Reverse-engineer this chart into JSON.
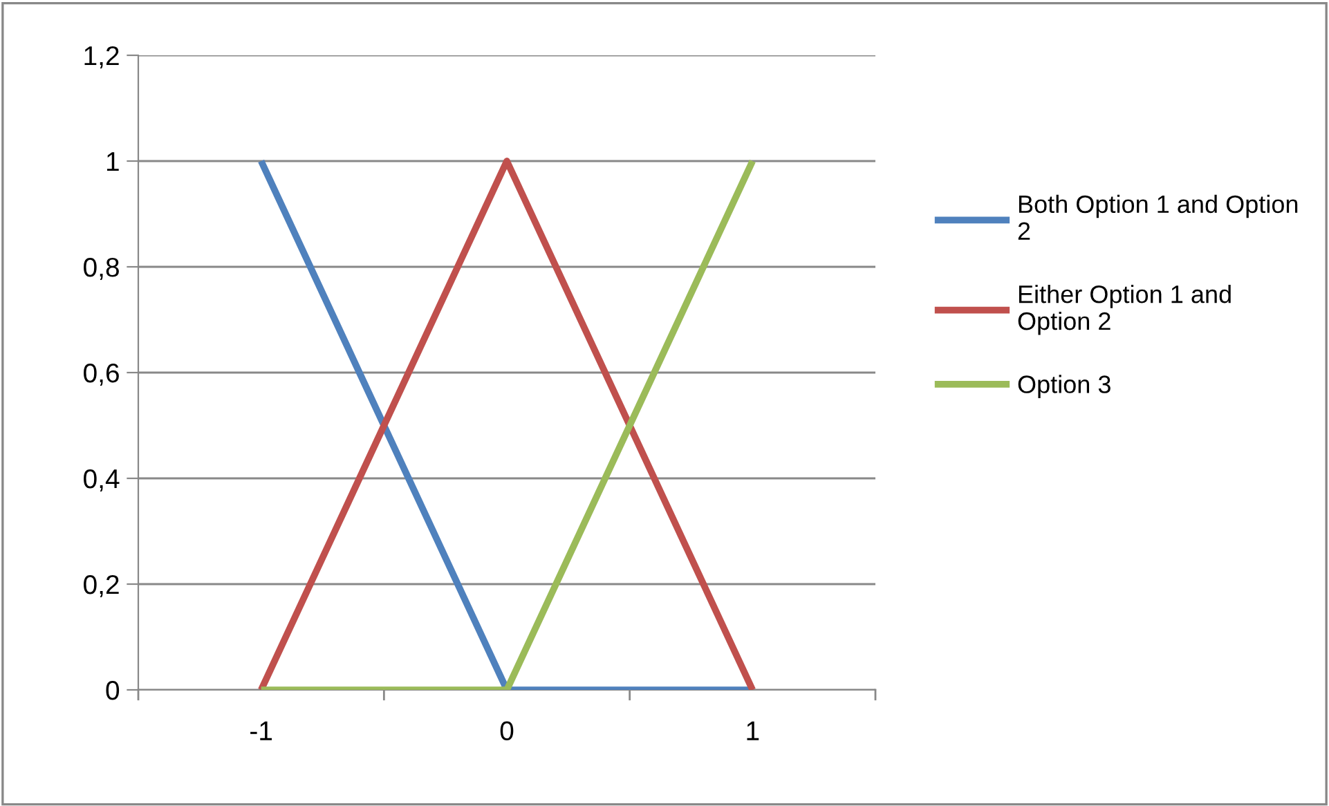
{
  "chart_data": {
    "type": "line",
    "categories": [
      "-1",
      "0",
      "1"
    ],
    "series": [
      {
        "name": "Both Option 1 and Option 2",
        "color": "#4f81bd",
        "values": [
          1,
          0,
          0
        ]
      },
      {
        "name": "Either Option 1 and Option 2",
        "color": "#c0504d",
        "values": [
          0,
          1,
          0
        ]
      },
      {
        "name": "Option 3",
        "color": "#9bbb59",
        "values": [
          0,
          0,
          1
        ]
      }
    ],
    "ylim": [
      0,
      1.2
    ],
    "yticks": [
      0,
      {
        "value": 0.2,
        "label": "0,2"
      },
      {
        "value": 0.4,
        "label": "0,4"
      },
      {
        "value": 0.6,
        "label": "0,6"
      },
      {
        "value": 0.8,
        "label": "0,8"
      },
      1,
      {
        "value": 1.2,
        "label": "1,2"
      }
    ],
    "grid": "y",
    "legend": "right",
    "marker": "none",
    "line_style": "solid"
  }
}
